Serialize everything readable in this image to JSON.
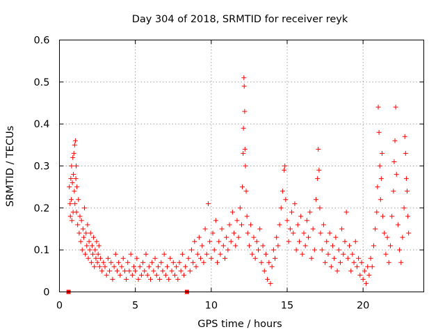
{
  "chart_data": {
    "type": "scatter",
    "title": "Day 304 of 2018, SRMTID for receiver reyk",
    "xlabel": "GPS time / hours",
    "ylabel": "SRMTID / TECUs",
    "xlim": [
      0,
      24
    ],
    "ylim": [
      0,
      0.6
    ],
    "xticks": [
      0,
      5,
      10,
      15,
      20
    ],
    "xtick_labels": [
      "0",
      "5",
      "10",
      "15",
      "20"
    ],
    "yticks": [
      0,
      0.1,
      0.2,
      0.3,
      0.4,
      0.5,
      0.6
    ],
    "ytick_labels": [
      "0",
      "0.1",
      "0.2",
      "0.3",
      "0.4",
      "0.5",
      "0.6"
    ],
    "grid": true,
    "marker": "+",
    "color": "#ff0000",
    "zero_markers_x": [
      0.6,
      8.4
    ],
    "series": [
      {
        "name": "SRMTID",
        "points": [
          [
            0.65,
            0.25
          ],
          [
            0.7,
            0.21
          ],
          [
            0.72,
            0.18
          ],
          [
            0.75,
            0.27
          ],
          [
            0.78,
            0.22
          ],
          [
            0.8,
            0.3
          ],
          [
            0.82,
            0.17
          ],
          [
            0.85,
            0.26
          ],
          [
            0.88,
            0.32
          ],
          [
            0.9,
            0.19
          ],
          [
            0.92,
            0.28
          ],
          [
            0.95,
            0.33
          ],
          [
            0.98,
            0.24
          ],
          [
            1.0,
            0.35
          ],
          [
            1.02,
            0.21
          ],
          [
            1.05,
            0.36
          ],
          [
            1.08,
            0.27
          ],
          [
            1.1,
            0.3
          ],
          [
            1.12,
            0.19
          ],
          [
            1.15,
            0.25
          ],
          [
            1.2,
            0.16
          ],
          [
            1.25,
            0.22
          ],
          [
            1.3,
            0.14
          ],
          [
            1.35,
            0.18
          ],
          [
            1.4,
            0.12
          ],
          [
            1.45,
            0.17
          ],
          [
            1.5,
            0.1
          ],
          [
            1.55,
            0.15
          ],
          [
            1.6,
            0.13
          ],
          [
            1.65,
            0.2
          ],
          [
            1.7,
            0.09
          ],
          [
            1.75,
            0.14
          ],
          [
            1.8,
            0.11
          ],
          [
            1.85,
            0.16
          ],
          [
            1.9,
            0.08
          ],
          [
            1.95,
            0.12
          ],
          [
            2.0,
            0.1
          ],
          [
            2.05,
            0.14
          ],
          [
            2.1,
            0.07
          ],
          [
            2.15,
            0.11
          ],
          [
            2.2,
            0.09
          ],
          [
            2.25,
            0.13
          ],
          [
            2.3,
            0.06
          ],
          [
            2.35,
            0.1
          ],
          [
            2.4,
            0.08
          ],
          [
            2.45,
            0.12
          ],
          [
            2.5,
            0.07
          ],
          [
            2.55,
            0.09
          ],
          [
            2.6,
            0.11
          ],
          [
            2.65,
            0.06
          ],
          [
            2.7,
            0.08
          ],
          [
            2.8,
            0.05
          ],
          [
            2.9,
            0.07
          ],
          [
            3.0,
            0.06
          ],
          [
            3.1,
            0.04
          ],
          [
            3.2,
            0.08
          ],
          [
            3.3,
            0.05
          ],
          [
            3.4,
            0.07
          ],
          [
            3.5,
            0.03
          ],
          [
            3.6,
            0.06
          ],
          [
            3.7,
            0.09
          ],
          [
            3.8,
            0.05
          ],
          [
            3.9,
            0.07
          ],
          [
            4.0,
            0.04
          ],
          [
            4.1,
            0.06
          ],
          [
            4.2,
            0.08
          ],
          [
            4.3,
            0.05
          ],
          [
            4.4,
            0.03
          ],
          [
            4.5,
            0.07
          ],
          [
            4.6,
            0.05
          ],
          [
            4.7,
            0.09
          ],
          [
            4.8,
            0.04
          ],
          [
            4.9,
            0.06
          ],
          [
            5.0,
            0.05
          ],
          [
            5.1,
            0.08
          ],
          [
            5.2,
            0.03
          ],
          [
            5.3,
            0.06
          ],
          [
            5.4,
            0.04
          ],
          [
            5.5,
            0.07
          ],
          [
            5.6,
            0.05
          ],
          [
            5.7,
            0.09
          ],
          [
            5.8,
            0.04
          ],
          [
            5.9,
            0.06
          ],
          [
            6.0,
            0.03
          ],
          [
            6.1,
            0.07
          ],
          [
            6.2,
            0.05
          ],
          [
            6.3,
            0.08
          ],
          [
            6.4,
            0.04
          ],
          [
            6.5,
            0.06
          ],
          [
            6.6,
            0.03
          ],
          [
            6.7,
            0.07
          ],
          [
            6.8,
            0.05
          ],
          [
            6.9,
            0.09
          ],
          [
            7.0,
            0.04
          ],
          [
            7.1,
            0.06
          ],
          [
            7.2,
            0.03
          ],
          [
            7.3,
            0.08
          ],
          [
            7.4,
            0.05
          ],
          [
            7.5,
            0.07
          ],
          [
            7.6,
            0.04
          ],
          [
            7.7,
            0.06
          ],
          [
            7.8,
            0.03
          ],
          [
            7.9,
            0.07
          ],
          [
            8.0,
            0.05
          ],
          [
            8.1,
            0.09
          ],
          [
            8.2,
            0.04
          ],
          [
            8.3,
            0.06
          ],
          [
            8.5,
            0.08
          ],
          [
            8.6,
            0.05
          ],
          [
            8.7,
            0.1
          ],
          [
            8.8,
            0.07
          ],
          [
            8.9,
            0.12
          ],
          [
            9.0,
            0.06
          ],
          [
            9.1,
            0.09
          ],
          [
            9.2,
            0.13
          ],
          [
            9.3,
            0.08
          ],
          [
            9.4,
            0.11
          ],
          [
            9.5,
            0.07
          ],
          [
            9.6,
            0.15
          ],
          [
            9.7,
            0.09
          ],
          [
            9.8,
            0.21
          ],
          [
            9.9,
            0.12
          ],
          [
            10.0,
            0.08
          ],
          [
            10.1,
            0.14
          ],
          [
            10.2,
            0.1
          ],
          [
            10.3,
            0.17
          ],
          [
            10.4,
            0.07
          ],
          [
            10.5,
            0.12
          ],
          [
            10.6,
            0.09
          ],
          [
            10.7,
            0.15
          ],
          [
            10.8,
            0.11
          ],
          [
            10.9,
            0.08
          ],
          [
            11.0,
            0.13
          ],
          [
            11.1,
            0.1
          ],
          [
            11.2,
            0.16
          ],
          [
            11.3,
            0.12
          ],
          [
            11.4,
            0.19
          ],
          [
            11.5,
            0.14
          ],
          [
            11.6,
            0.11
          ],
          [
            11.7,
            0.17
          ],
          [
            11.8,
            0.13
          ],
          [
            11.9,
            0.2
          ],
          [
            12.0,
            0.16
          ],
          [
            12.05,
            0.25
          ],
          [
            12.1,
            0.33
          ],
          [
            12.12,
            0.39
          ],
          [
            12.15,
            0.51
          ],
          [
            12.17,
            0.49
          ],
          [
            12.2,
            0.43
          ],
          [
            12.22,
            0.34
          ],
          [
            12.25,
            0.3
          ],
          [
            12.3,
            0.24
          ],
          [
            12.35,
            0.18
          ],
          [
            12.4,
            0.14
          ],
          [
            12.5,
            0.11
          ],
          [
            12.6,
            0.16
          ],
          [
            12.7,
            0.09
          ],
          [
            12.8,
            0.13
          ],
          [
            12.9,
            0.08
          ],
          [
            13.0,
            0.12
          ],
          [
            13.1,
            0.1
          ],
          [
            13.2,
            0.15
          ],
          [
            13.3,
            0.07
          ],
          [
            13.4,
            0.11
          ],
          [
            13.5,
            0.05
          ],
          [
            13.6,
            0.09
          ],
          [
            13.7,
            0.03
          ],
          [
            13.8,
            0.07
          ],
          [
            13.9,
            0.02
          ],
          [
            14.0,
            0.06
          ],
          [
            14.1,
            0.1
          ],
          [
            14.2,
            0.08
          ],
          [
            14.3,
            0.13
          ],
          [
            14.4,
            0.11
          ],
          [
            14.5,
            0.16
          ],
          [
            14.6,
            0.2
          ],
          [
            14.7,
            0.24
          ],
          [
            14.8,
            0.29
          ],
          [
            14.85,
            0.3
          ],
          [
            14.9,
            0.22
          ],
          [
            15.0,
            0.17
          ],
          [
            15.1,
            0.12
          ],
          [
            15.2,
            0.15
          ],
          [
            15.3,
            0.19
          ],
          [
            15.4,
            0.14
          ],
          [
            15.5,
            0.21
          ],
          [
            15.6,
            0.1
          ],
          [
            15.7,
            0.16
          ],
          [
            15.8,
            0.12
          ],
          [
            15.9,
            0.18
          ],
          [
            16.0,
            0.09
          ],
          [
            16.1,
            0.14
          ],
          [
            16.2,
            0.11
          ],
          [
            16.3,
            0.17
          ],
          [
            16.4,
            0.13
          ],
          [
            16.5,
            0.19
          ],
          [
            16.6,
            0.08
          ],
          [
            16.7,
            0.15
          ],
          [
            16.8,
            0.1
          ],
          [
            16.9,
            0.22
          ],
          [
            17.0,
            0.27
          ],
          [
            17.05,
            0.34
          ],
          [
            17.1,
            0.29
          ],
          [
            17.15,
            0.2
          ],
          [
            17.2,
            0.14
          ],
          [
            17.3,
            0.1
          ],
          [
            17.4,
            0.16
          ],
          [
            17.5,
            0.07
          ],
          [
            17.6,
            0.12
          ],
          [
            17.7,
            0.09
          ],
          [
            17.8,
            0.14
          ],
          [
            17.9,
            0.06
          ],
          [
            18.0,
            0.11
          ],
          [
            18.1,
            0.08
          ],
          [
            18.2,
            0.13
          ],
          [
            18.3,
            0.05
          ],
          [
            18.4,
            0.1
          ],
          [
            18.5,
            0.07
          ],
          [
            18.6,
            0.15
          ],
          [
            18.7,
            0.09
          ],
          [
            18.8,
            0.12
          ],
          [
            18.9,
            0.19
          ],
          [
            19.0,
            0.08
          ],
          [
            19.1,
            0.11
          ],
          [
            19.2,
            0.05
          ],
          [
            19.3,
            0.09
          ],
          [
            19.4,
            0.07
          ],
          [
            19.5,
            0.12
          ],
          [
            19.6,
            0.06
          ],
          [
            19.7,
            0.08
          ],
          [
            19.8,
            0.04
          ],
          [
            19.9,
            0.07
          ],
          [
            20.0,
            0.03
          ],
          [
            20.1,
            0.05
          ],
          [
            20.2,
            0.02
          ],
          [
            20.3,
            0.06
          ],
          [
            20.4,
            0.04
          ],
          [
            20.5,
            0.08
          ],
          [
            20.6,
            0.06
          ],
          [
            20.7,
            0.11
          ],
          [
            20.8,
            0.15
          ],
          [
            20.9,
            0.19
          ],
          [
            20.95,
            0.25
          ],
          [
            21.0,
            0.44
          ],
          [
            21.05,
            0.38
          ],
          [
            21.1,
            0.3
          ],
          [
            21.15,
            0.22
          ],
          [
            21.2,
            0.27
          ],
          [
            21.25,
            0.33
          ],
          [
            21.3,
            0.18
          ],
          [
            21.4,
            0.14
          ],
          [
            21.5,
            0.09
          ],
          [
            21.6,
            0.13
          ],
          [
            21.7,
            0.07
          ],
          [
            21.8,
            0.11
          ],
          [
            21.9,
            0.18
          ],
          [
            22.0,
            0.24
          ],
          [
            22.05,
            0.31
          ],
          [
            22.1,
            0.36
          ],
          [
            22.15,
            0.44
          ],
          [
            22.2,
            0.28
          ],
          [
            22.3,
            0.16
          ],
          [
            22.4,
            0.1
          ],
          [
            22.5,
            0.07
          ],
          [
            22.6,
            0.13
          ],
          [
            22.7,
            0.2
          ],
          [
            22.75,
            0.37
          ],
          [
            22.8,
            0.33
          ],
          [
            22.85,
            0.27
          ],
          [
            22.9,
            0.24
          ],
          [
            22.95,
            0.18
          ],
          [
            23.0,
            0.14
          ]
        ]
      }
    ]
  }
}
